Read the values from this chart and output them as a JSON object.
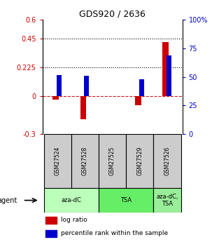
{
  "title": "GDS920 / 2636",
  "samples": [
    "GSM27524",
    "GSM27528",
    "GSM27525",
    "GSM27529",
    "GSM27526"
  ],
  "log_ratio": [
    -0.03,
    -0.185,
    0.0,
    -0.075,
    0.42
  ],
  "percentile_rank_mapped": [
    0.165,
    0.156,
    0.0,
    0.132,
    0.318
  ],
  "ylim": [
    -0.3,
    0.6
  ],
  "yticks_left": [
    -0.3,
    0,
    0.225,
    0.45,
    0.6
  ],
  "yticks_right": [
    0,
    25,
    50,
    75,
    100
  ],
  "hlines": [
    0.225,
    0.45
  ],
  "red_color": "#cc0000",
  "blue_color": "#0000cc",
  "sample_box_color": "#cccccc",
  "agent_groups": [
    {
      "label": "aza-dC",
      "indices": [
        0,
        1
      ],
      "color": "#bbffbb"
    },
    {
      "label": "TSA",
      "indices": [
        2,
        3
      ],
      "color": "#66ee66"
    },
    {
      "label": "aza-dC,\nTSA",
      "indices": [
        4
      ],
      "color": "#99ee99"
    }
  ],
  "legend_log_ratio": "log ratio",
  "legend_percentile": "percentile rank within the sample",
  "background_color": "#ffffff",
  "agent_label": "agent"
}
